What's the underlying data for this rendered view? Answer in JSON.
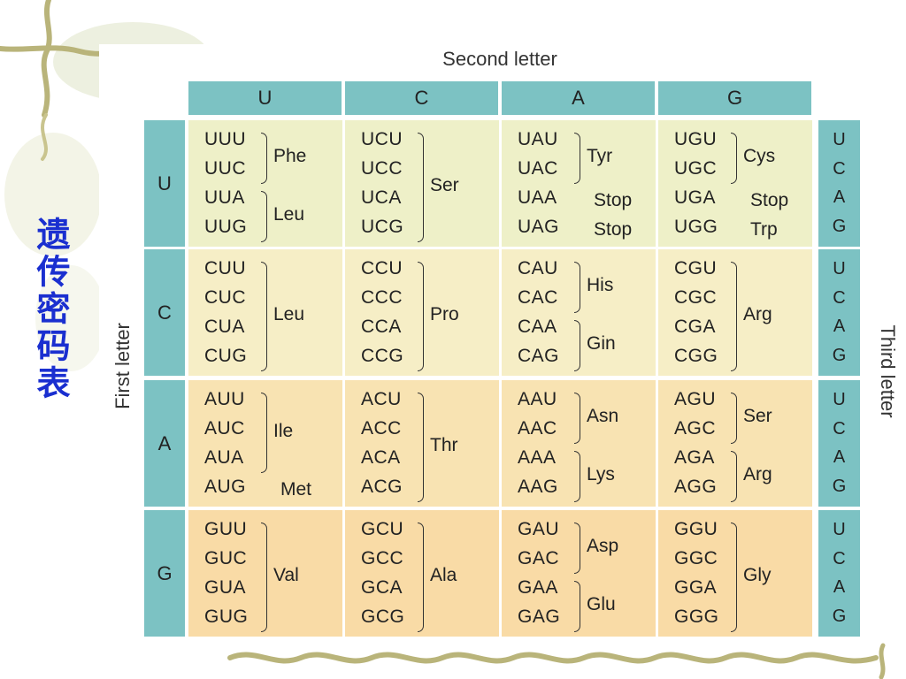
{
  "side_title": "遗传密码表",
  "table": {
    "second_letter_title": "Second letter",
    "first_letter_title": "First letter",
    "third_letter_title": "Third letter",
    "columns": [
      "U",
      "C",
      "A",
      "G"
    ],
    "rows": [
      "U",
      "C",
      "A",
      "G"
    ],
    "third_letters": [
      "U",
      "C",
      "A",
      "G"
    ],
    "cells": [
      [
        {
          "codons": [
            "UUU",
            "UUC",
            "UUA",
            "UUG"
          ],
          "groups": [
            {
              "span": [
                0,
                1
              ],
              "aa": "Phe"
            },
            {
              "span": [
                2,
                3
              ],
              "aa": "Leu"
            }
          ]
        },
        {
          "codons": [
            "UCU",
            "UCC",
            "UCA",
            "UCG"
          ],
          "groups": [
            {
              "span": [
                0,
                3
              ],
              "aa": "Ser"
            }
          ]
        },
        {
          "codons": [
            "UAU",
            "UAC",
            "UAA",
            "UAG"
          ],
          "groups": [
            {
              "span": [
                0,
                1
              ],
              "aa": "Tyr"
            },
            {
              "span": [
                2,
                2
              ],
              "aa": "Stop",
              "nobracket": true
            },
            {
              "span": [
                3,
                3
              ],
              "aa": "Stop",
              "nobracket": true
            }
          ]
        },
        {
          "codons": [
            "UGU",
            "UGC",
            "UGA",
            "UGG"
          ],
          "groups": [
            {
              "span": [
                0,
                1
              ],
              "aa": "Cys"
            },
            {
              "span": [
                2,
                2
              ],
              "aa": "Stop",
              "nobracket": true
            },
            {
              "span": [
                3,
                3
              ],
              "aa": "Trp",
              "nobracket": true
            }
          ]
        }
      ],
      [
        {
          "codons": [
            "CUU",
            "CUC",
            "CUA",
            "CUG"
          ],
          "groups": [
            {
              "span": [
                0,
                3
              ],
              "aa": "Leu"
            }
          ]
        },
        {
          "codons": [
            "CCU",
            "CCC",
            "CCA",
            "CCG"
          ],
          "groups": [
            {
              "span": [
                0,
                3
              ],
              "aa": "Pro"
            }
          ]
        },
        {
          "codons": [
            "CAU",
            "CAC",
            "CAA",
            "CAG"
          ],
          "groups": [
            {
              "span": [
                0,
                1
              ],
              "aa": "His"
            },
            {
              "span": [
                2,
                3
              ],
              "aa": "Gin"
            }
          ]
        },
        {
          "codons": [
            "CGU",
            "CGC",
            "CGA",
            "CGG"
          ],
          "groups": [
            {
              "span": [
                0,
                3
              ],
              "aa": "Arg"
            }
          ]
        }
      ],
      [
        {
          "codons": [
            "AUU",
            "AUC",
            "AUA",
            "AUG"
          ],
          "groups": [
            {
              "span": [
                0,
                2
              ],
              "aa": "Ile"
            },
            {
              "span": [
                3,
                3
              ],
              "aa": "Met",
              "nobracket": true
            }
          ]
        },
        {
          "codons": [
            "ACU",
            "ACC",
            "ACA",
            "ACG"
          ],
          "groups": [
            {
              "span": [
                0,
                3
              ],
              "aa": "Thr"
            }
          ]
        },
        {
          "codons": [
            "AAU",
            "AAC",
            "AAA",
            "AAG"
          ],
          "groups": [
            {
              "span": [
                0,
                1
              ],
              "aa": "Asn"
            },
            {
              "span": [
                2,
                3
              ],
              "aa": "Lys"
            }
          ]
        },
        {
          "codons": [
            "AGU",
            "AGC",
            "AGA",
            "AGG"
          ],
          "groups": [
            {
              "span": [
                0,
                1
              ],
              "aa": "Ser"
            },
            {
              "span": [
                2,
                3
              ],
              "aa": "Arg"
            }
          ]
        }
      ],
      [
        {
          "codons": [
            "GUU",
            "GUC",
            "GUA",
            "GUG"
          ],
          "groups": [
            {
              "span": [
                0,
                3
              ],
              "aa": "Val"
            }
          ]
        },
        {
          "codons": [
            "GCU",
            "GCC",
            "GCA",
            "GCG"
          ],
          "groups": [
            {
              "span": [
                0,
                3
              ],
              "aa": "Ala"
            }
          ]
        },
        {
          "codons": [
            "GAU",
            "GAC",
            "GAA",
            "GAG"
          ],
          "groups": [
            {
              "span": [
                0,
                1
              ],
              "aa": "Asp"
            },
            {
              "span": [
                2,
                3
              ],
              "aa": "Glu"
            }
          ]
        },
        {
          "codons": [
            "GGU",
            "GGC",
            "GGA",
            "GGG"
          ],
          "groups": [
            {
              "span": [
                0,
                3
              ],
              "aa": "Gly"
            }
          ]
        }
      ]
    ]
  },
  "colors": {
    "header": "#7cc2c3",
    "row_backgrounds": [
      "#eef0c8",
      "#f6eec6",
      "#f8e3b2",
      "#f9dba6"
    ],
    "title_text": "#1a2fd0"
  },
  "icons": [
    "vine-decoration-icon"
  ]
}
